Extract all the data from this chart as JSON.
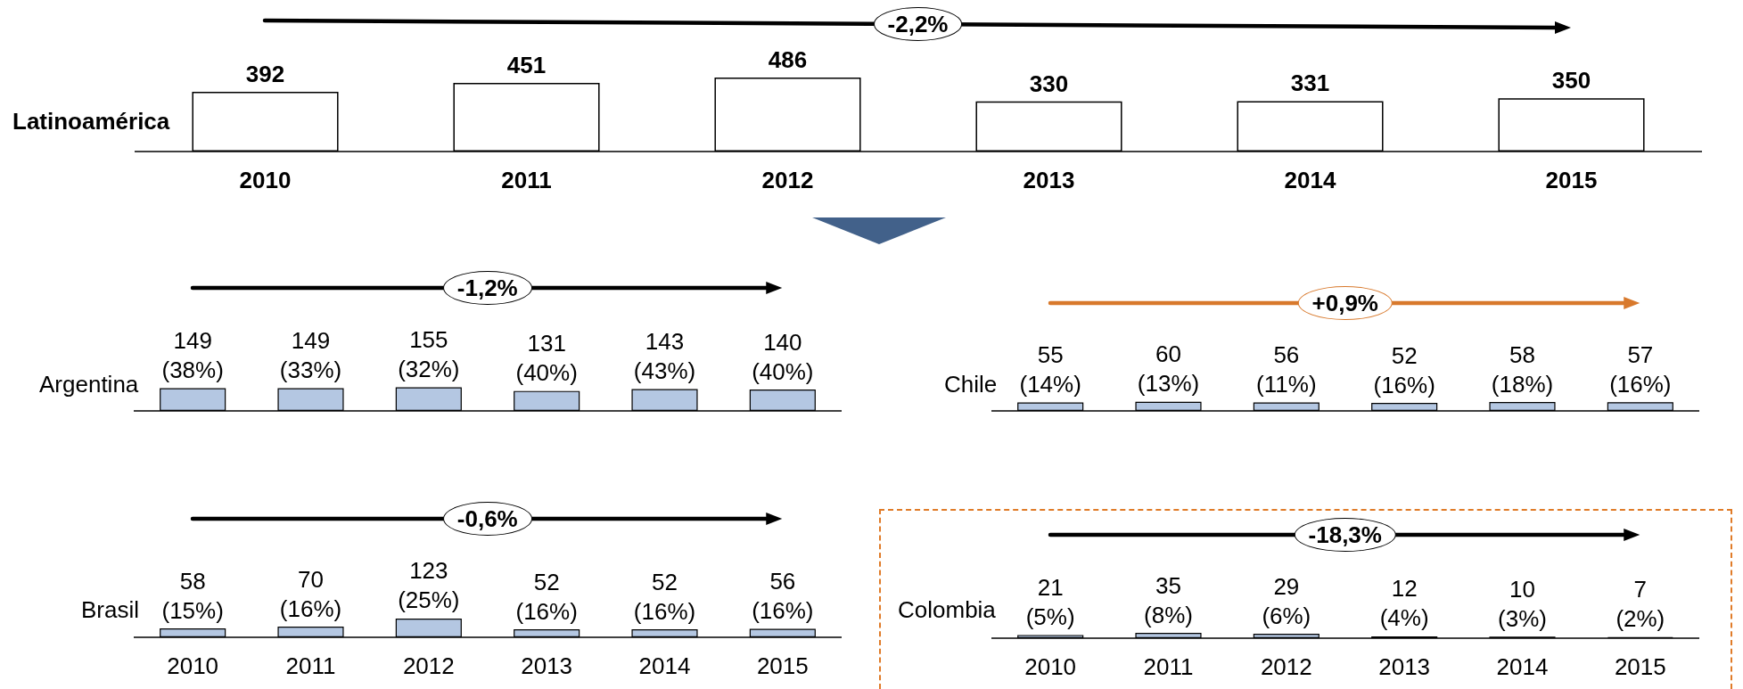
{
  "chart_data": [
    {
      "type": "bar",
      "title": "Latinoamérica",
      "categories": [
        "2010",
        "2011",
        "2012",
        "2013",
        "2014",
        "2015"
      ],
      "values": [
        392,
        451,
        486,
        330,
        331,
        350
      ],
      "color": "#ffffff",
      "data_labels": true,
      "annotations": [
        "-2,2%"
      ]
    },
    {
      "type": "bar",
      "title": "Argentina",
      "categories": [
        "2010",
        "2011",
        "2012",
        "2013",
        "2014",
        "2015"
      ],
      "values": [
        149,
        149,
        155,
        131,
        143,
        140
      ],
      "value_labels": [
        "149\n(38%)",
        "149\n(33%)",
        "155\n(32%)",
        "131\n(40%)",
        "143\n(43%)",
        "140\n(40%)"
      ],
      "color": "#b4c7e2",
      "annotations": [
        "-1,2%"
      ],
      "tick_labels": false
    },
    {
      "type": "bar",
      "title": "Chile",
      "categories": [
        "2010",
        "2011",
        "2012",
        "2013",
        "2014",
        "2015"
      ],
      "values": [
        55,
        60,
        56,
        52,
        58,
        57
      ],
      "value_labels": [
        "55\n(14%)",
        "60\n(13%)",
        "56\n(11%)",
        "52\n(16%)",
        "58\n(18%)",
        "57\n(16%)"
      ],
      "color": "#b4c7e2",
      "annotations": [
        "+0,9%"
      ],
      "tick_labels": false
    },
    {
      "type": "bar",
      "title": "Brasil",
      "categories": [
        "2010",
        "2011",
        "2012",
        "2013",
        "2014",
        "2015"
      ],
      "values": [
        58,
        70,
        123,
        52,
        52,
        56
      ],
      "value_labels": [
        "58\n(15%)",
        "70\n(16%)",
        "123\n(25%)",
        "52\n(16%)",
        "52\n(16%)",
        "56\n(16%)"
      ],
      "color": "#b4c7e2",
      "annotations": [
        "-0,6%"
      ]
    },
    {
      "type": "bar",
      "title": "Colombia",
      "categories": [
        "2010",
        "2011",
        "2012",
        "2013",
        "2014",
        "2015"
      ],
      "values": [
        21,
        35,
        29,
        12,
        10,
        7
      ],
      "value_labels": [
        "21\n(5%)",
        "35\n(8%)",
        "29\n(6%)",
        "12\n(4%)",
        "10\n(3%)",
        "7\n(2%)"
      ],
      "colors": [
        "#b4c7e2",
        "#b4c7e2",
        "#b4c7e2",
        "#000000",
        "#000000",
        "#000000"
      ],
      "annotations": [
        "-18,3%"
      ]
    }
  ]
}
